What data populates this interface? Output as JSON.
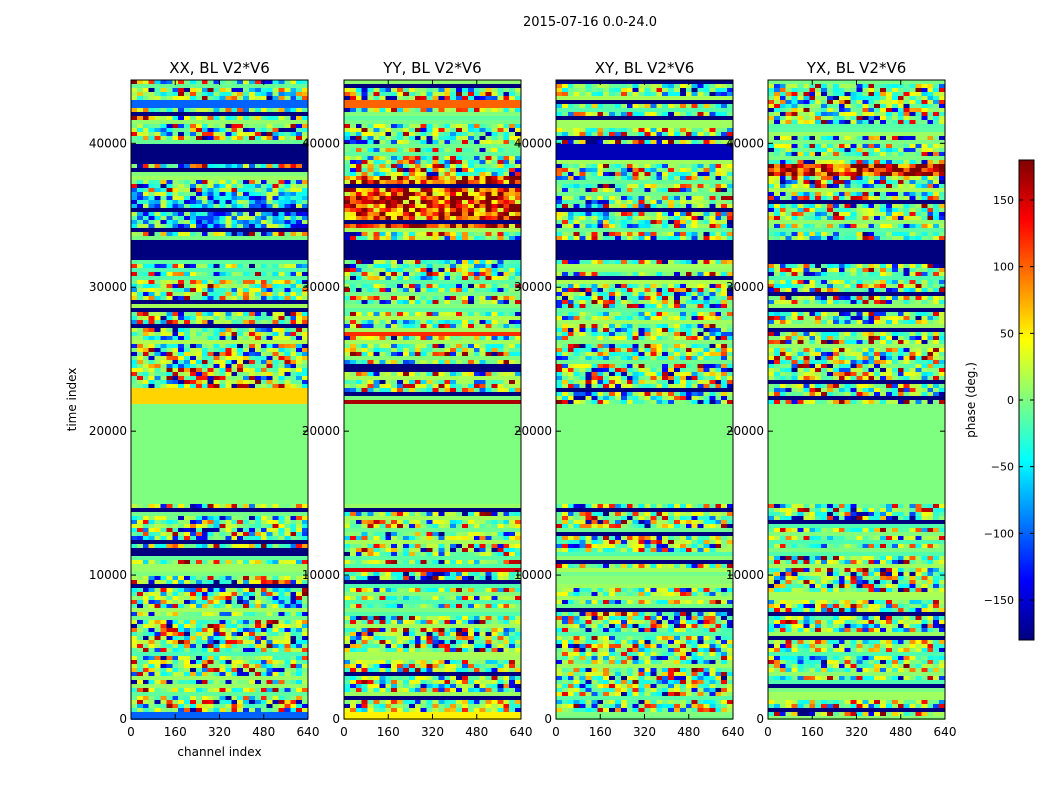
{
  "figure": {
    "suptitle": "2015-07-16 0.0-24.0"
  },
  "colors": {
    "colormap": "jet",
    "jet_stops": [
      "#00007f",
      "#0000ff",
      "#007fff",
      "#00ffff",
      "#7fff7f",
      "#ffff00",
      "#ff7f00",
      "#ff0000",
      "#7f0000"
    ]
  },
  "chart_data": [
    {
      "type": "heatmap",
      "title": "XX, BL V2*V6",
      "xlabel": "channel index",
      "ylabel": "time index",
      "xlim": [
        0,
        640
      ],
      "ylim": [
        0,
        44400
      ],
      "xticks": [
        0,
        160,
        320,
        480,
        640
      ],
      "yticks": [
        0,
        10000,
        20000,
        30000,
        40000
      ],
      "value_range": [
        -180,
        180
      ],
      "bands": [
        {
          "y": [
            0,
            500
          ],
          "kind": "solid",
          "value": -100
        },
        {
          "y": [
            15000,
            22000
          ],
          "kind": "solid",
          "value": 0
        },
        {
          "y": [
            22000,
            23000
          ],
          "kind": "solid",
          "value": 60
        },
        {
          "y": [
            32000,
            33400
          ],
          "kind": "solid",
          "value": -180
        },
        {
          "y": [
            34000,
            36500
          ],
          "kind": "noise",
          "value": -60
        },
        {
          "y": [
            38500,
            40000
          ],
          "kind": "solid",
          "value": -180
        },
        {
          "y": [
            42400,
            42900
          ],
          "kind": "solid",
          "value": -100
        }
      ]
    },
    {
      "type": "heatmap",
      "title": "YY, BL V2*V6",
      "xlabel": "",
      "ylabel": "",
      "xlim": [
        0,
        640
      ],
      "ylim": [
        0,
        44400
      ],
      "xticks": [
        0,
        160,
        320,
        480,
        640
      ],
      "yticks": [
        0,
        10000,
        20000,
        30000,
        40000
      ],
      "value_range": [
        -180,
        180
      ],
      "bands": [
        {
          "y": [
            0,
            600
          ],
          "kind": "solid",
          "value": 50
        },
        {
          "y": [
            10300,
            10600
          ],
          "kind": "solid",
          "value": 150
        },
        {
          "y": [
            15000,
            21800
          ],
          "kind": "solid",
          "value": 0
        },
        {
          "y": [
            21800,
            22300
          ],
          "kind": "solid",
          "value": 165
        },
        {
          "y": [
            26600,
            27000
          ],
          "kind": "solid",
          "value": 120
        },
        {
          "y": [
            32000,
            33400
          ],
          "kind": "solid",
          "value": -180
        },
        {
          "y": [
            34000,
            37800
          ],
          "kind": "noise",
          "value": 120
        },
        {
          "y": [
            42400,
            42900
          ],
          "kind": "solid",
          "value": 100
        }
      ]
    },
    {
      "type": "heatmap",
      "title": "XY, BL V2*V6",
      "xlabel": "",
      "ylabel": "",
      "xlim": [
        0,
        640
      ],
      "ylim": [
        0,
        44400
      ],
      "xticks": [
        0,
        160,
        320,
        480,
        640
      ],
      "yticks": [
        0,
        10000,
        20000,
        30000,
        40000
      ],
      "value_range": [
        -180,
        180
      ],
      "bands": [
        {
          "y": [
            15000,
            22000
          ],
          "kind": "solid",
          "value": 0
        },
        {
          "y": [
            32000,
            33400
          ],
          "kind": "solid",
          "value": -180
        },
        {
          "y": [
            38800,
            40000
          ],
          "kind": "solid",
          "value": -160
        }
      ]
    },
    {
      "type": "heatmap",
      "title": "YX, BL V2*V6",
      "xlabel": "",
      "ylabel": "",
      "xlim": [
        0,
        640
      ],
      "ylim": [
        0,
        44400
      ],
      "xticks": [
        0,
        160,
        320,
        480,
        640
      ],
      "yticks": [
        0,
        10000,
        20000,
        30000,
        40000
      ],
      "value_range": [
        -180,
        180
      ],
      "bands": [
        {
          "y": [
            15000,
            22000
          ],
          "kind": "solid",
          "value": 0
        },
        {
          "y": [
            32000,
            33400
          ],
          "kind": "solid",
          "value": -180
        },
        {
          "y": [
            37600,
            38600
          ],
          "kind": "noise",
          "value": 150
        }
      ]
    }
  ],
  "colorbar": {
    "label": "phase (deg.)",
    "range": [
      -180,
      180
    ],
    "ticks": [
      "150",
      "100",
      "50",
      "0",
      "−50",
      "−100",
      "−150"
    ],
    "tick_values": [
      150,
      100,
      50,
      0,
      -50,
      -100,
      -150
    ]
  }
}
